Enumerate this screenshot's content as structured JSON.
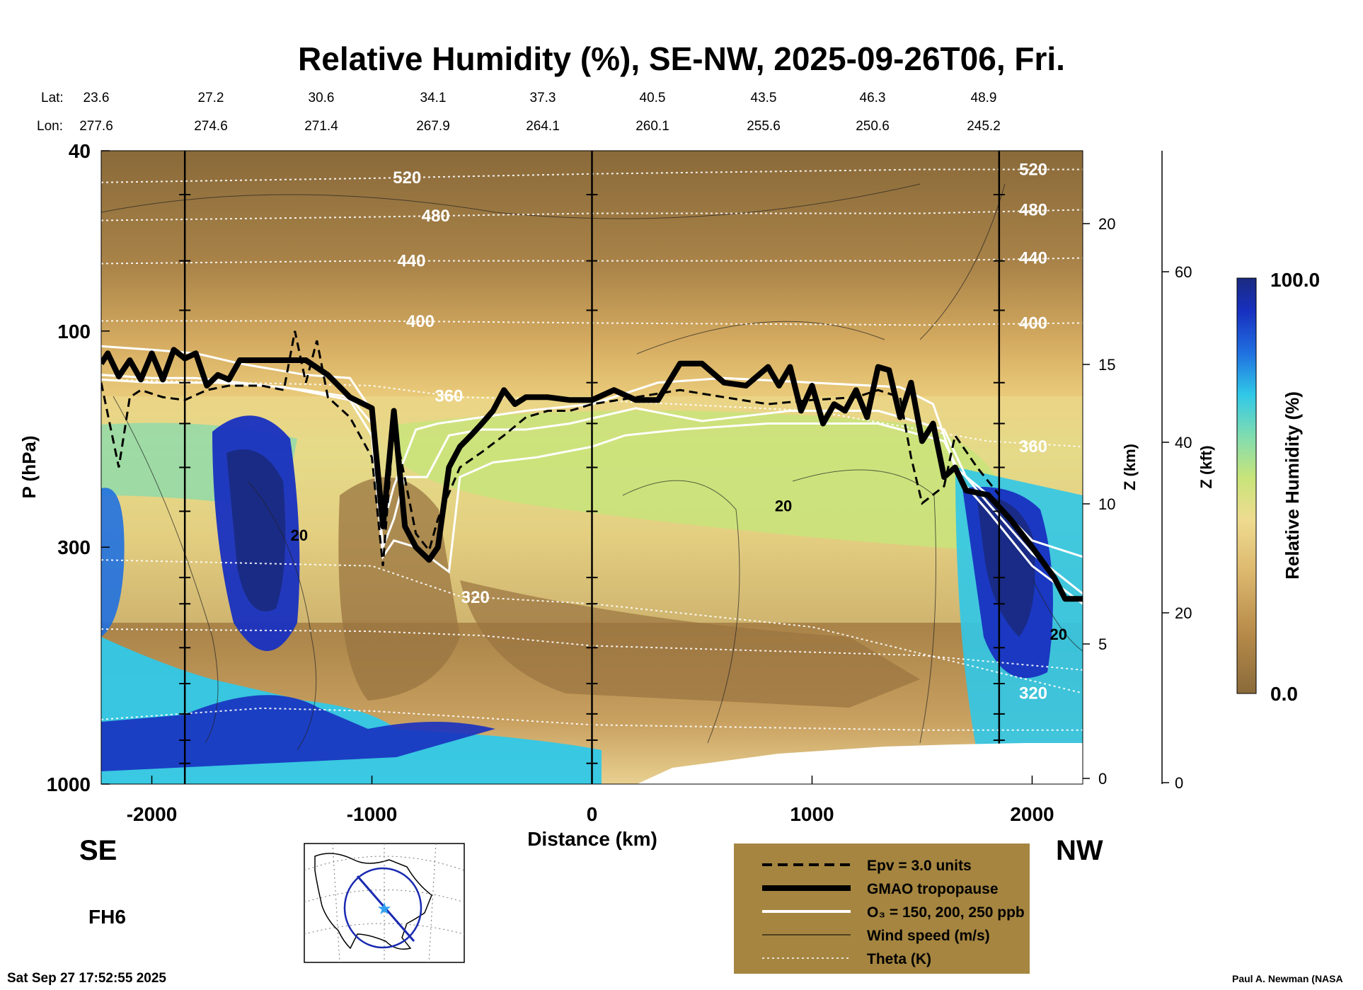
{
  "title": "Relative Humidity (%), SE-NW, 2025-09-26T06, Fri.",
  "lat_label": "Lat:",
  "lon_label": "Lon:",
  "lat_values": [
    "23.6",
    "27.2",
    "30.6",
    "34.1",
    "37.3",
    "40.5",
    "43.5",
    "46.3",
    "48.9"
  ],
  "lon_values": [
    "277.6",
    "274.6",
    "271.4",
    "267.9",
    "264.1",
    "260.1",
    "255.6",
    "250.6",
    "245.2"
  ],
  "left_end": "SE",
  "right_end": "NW",
  "forecast_hour": "FH6",
  "timestamp": "Sat Sep 27 17:52:55 2025",
  "credit": "Paul A. Newman (NASA",
  "legend": {
    "items": [
      {
        "style": "dashed",
        "label": "Epv = 3.0 units"
      },
      {
        "style": "thick",
        "label": "GMAO tropopause"
      },
      {
        "style": "white",
        "label": "O₃ = 150, 200, 250 ppb"
      },
      {
        "style": "thin",
        "label": "Wind speed (m/s)"
      },
      {
        "style": "dotted",
        "label": "Theta (K)"
      }
    ]
  },
  "colors": {
    "dry": "#8a6a3a",
    "mid": "#c8e47a",
    "moist": "#1a2a80",
    "legend_bg": "#a58540"
  },
  "chart_data": {
    "type": "heatmap",
    "xlabel": "Distance (km)",
    "ylabel": "P (hPa)",
    "xlim": [
      -2230,
      2230
    ],
    "ylim": [
      1000,
      40
    ],
    "y_scale": "log",
    "x_ticks": [
      -2000,
      -1000,
      0,
      1000,
      2000
    ],
    "x_tick_labels": [
      "-2000",
      "-1000",
      "0",
      "1000",
      "2000"
    ],
    "y_ticks": [
      40,
      100,
      300,
      1000
    ],
    "y_tick_labels": [
      "40",
      "100",
      "300",
      "1000"
    ],
    "z_km_label": "Z (km)",
    "z_km_ticks": [
      0,
      5,
      10,
      15,
      20
    ],
    "z_kft_label": "Z (kft)",
    "z_kft_ticks": [
      0,
      20,
      40,
      60
    ],
    "colorbar": {
      "label": "Relative Humidity (%)",
      "min": 0.0,
      "max": 100.0,
      "min_label": "0.0",
      "max_label": "100.0"
    },
    "vertical_lines_x": [
      -1850,
      0,
      1850
    ],
    "theta_contours": [
      {
        "level": "520",
        "points": [
          [
            -2230,
            47
          ],
          [
            -1000,
            46
          ],
          [
            0,
            45
          ],
          [
            1500,
            44
          ],
          [
            2230,
            44
          ]
        ],
        "label_x": -840
      },
      {
        "level": "480",
        "points": [
          [
            -2230,
            57
          ],
          [
            -1000,
            56
          ],
          [
            0,
            55
          ],
          [
            1500,
            55
          ],
          [
            2230,
            54
          ]
        ],
        "label_x": -710
      },
      {
        "level": "440",
        "points": [
          [
            -2230,
            71
          ],
          [
            -1000,
            70
          ],
          [
            0,
            70
          ],
          [
            1500,
            70
          ],
          [
            2230,
            69
          ]
        ],
        "label_x": -820
      },
      {
        "level": "400",
        "points": [
          [
            -2230,
            95
          ],
          [
            -1000,
            95
          ],
          [
            0,
            96
          ],
          [
            1500,
            97
          ],
          [
            2230,
            96
          ]
        ],
        "label_x": -780
      },
      {
        "level": "360",
        "points": [
          [
            -2230,
            128
          ],
          [
            -1000,
            132
          ],
          [
            -600,
            140
          ],
          [
            0,
            142
          ],
          [
            1000,
            150
          ],
          [
            1800,
            175
          ],
          [
            2230,
            180
          ]
        ],
        "label_x": -650
      },
      {
        "level": "320",
        "points": [
          [
            -2230,
            320
          ],
          [
            -1000,
            330
          ],
          [
            -600,
            385
          ],
          [
            0,
            400
          ],
          [
            1000,
            450
          ],
          [
            1800,
            560
          ],
          [
            2230,
            630
          ]
        ],
        "label_x": -530
      },
      {
        "level": "",
        "points": [
          [
            -2230,
            455
          ],
          [
            -1000,
            460
          ],
          [
            -500,
            470
          ],
          [
            0,
            495
          ],
          [
            1500,
            520
          ],
          [
            2230,
            560
          ]
        ],
        "label_x": null
      },
      {
        "level": "",
        "points": [
          [
            -2230,
            720
          ],
          [
            -1500,
            680
          ],
          [
            -1000,
            690
          ],
          [
            0,
            740
          ],
          [
            1500,
            760
          ],
          [
            2230,
            760
          ]
        ],
        "label_x": null
      }
    ],
    "tropopause": [
      [
        -2230,
        118
      ],
      [
        -2200,
        112
      ],
      [
        -2150,
        126
      ],
      [
        -2100,
        116
      ],
      [
        -2050,
        128
      ],
      [
        -2000,
        112
      ],
      [
        -1950,
        128
      ],
      [
        -1900,
        110
      ],
      [
        -1850,
        115
      ],
      [
        -1800,
        112
      ],
      [
        -1750,
        132
      ],
      [
        -1700,
        125
      ],
      [
        -1650,
        128
      ],
      [
        -1600,
        116
      ],
      [
        -1500,
        116
      ],
      [
        -1400,
        116
      ],
      [
        -1300,
        116
      ],
      [
        -1200,
        125
      ],
      [
        -1100,
        140
      ],
      [
        -1000,
        148
      ],
      [
        -950,
        270
      ],
      [
        -900,
        150
      ],
      [
        -850,
        270
      ],
      [
        -800,
        300
      ],
      [
        -740,
        320
      ],
      [
        -700,
        300
      ],
      [
        -650,
        200
      ],
      [
        -600,
        180
      ],
      [
        -550,
        170
      ],
      [
        -500,
        160
      ],
      [
        -450,
        150
      ],
      [
        -400,
        135
      ],
      [
        -350,
        145
      ],
      [
        -300,
        140
      ],
      [
        -200,
        140
      ],
      [
        -100,
        142
      ],
      [
        0,
        142
      ],
      [
        100,
        135
      ],
      [
        200,
        142
      ],
      [
        300,
        142
      ],
      [
        400,
        118
      ],
      [
        500,
        118
      ],
      [
        600,
        130
      ],
      [
        700,
        132
      ],
      [
        800,
        120
      ],
      [
        850,
        132
      ],
      [
        900,
        120
      ],
      [
        950,
        150
      ],
      [
        1000,
        132
      ],
      [
        1050,
        160
      ],
      [
        1100,
        145
      ],
      [
        1150,
        150
      ],
      [
        1200,
        135
      ],
      [
        1250,
        155
      ],
      [
        1300,
        120
      ],
      [
        1350,
        122
      ],
      [
        1400,
        155
      ],
      [
        1450,
        130
      ],
      [
        1500,
        175
      ],
      [
        1550,
        160
      ],
      [
        1600,
        210
      ],
      [
        1650,
        200
      ],
      [
        1700,
        225
      ],
      [
        1800,
        230
      ],
      [
        1900,
        260
      ],
      [
        2000,
        300
      ],
      [
        2100,
        350
      ],
      [
        2150,
        390
      ],
      [
        2230,
        390
      ]
    ],
    "epv": [
      [
        -2230,
        130
      ],
      [
        -2150,
        200
      ],
      [
        -2100,
        140
      ],
      [
        -2050,
        135
      ],
      [
        -1950,
        140
      ],
      [
        -1850,
        142
      ],
      [
        -1750,
        135
      ],
      [
        -1650,
        132
      ],
      [
        -1500,
        132
      ],
      [
        -1400,
        135
      ],
      [
        -1350,
        100
      ],
      [
        -1300,
        130
      ],
      [
        -1250,
        105
      ],
      [
        -1200,
        140
      ],
      [
        -1100,
        155
      ],
      [
        -1000,
        190
      ],
      [
        -950,
        330
      ],
      [
        -900,
        160
      ],
      [
        -800,
        280
      ],
      [
        -740,
        305
      ],
      [
        -700,
        260
      ],
      [
        -600,
        200
      ],
      [
        -500,
        185
      ],
      [
        -400,
        170
      ],
      [
        -300,
        155
      ],
      [
        -200,
        150
      ],
      [
        -100,
        150
      ],
      [
        0,
        145
      ],
      [
        200,
        140
      ],
      [
        400,
        135
      ],
      [
        600,
        140
      ],
      [
        800,
        145
      ],
      [
        1000,
        142
      ],
      [
        1200,
        140
      ],
      [
        1300,
        135
      ],
      [
        1400,
        140
      ],
      [
        1450,
        190
      ],
      [
        1500,
        240
      ],
      [
        1600,
        220
      ],
      [
        1650,
        170
      ],
      [
        1750,
        200
      ],
      [
        1850,
        230
      ]
    ],
    "ozone": [
      [
        [
          -2230,
          108
        ],
        [
          -2000,
          110
        ],
        [
          -1800,
          112
        ],
        [
          -1600,
          118
        ],
        [
          -1300,
          125
        ],
        [
          -1100,
          127
        ],
        [
          -1000,
          150
        ],
        [
          -950,
          270
        ],
        [
          -900,
          220
        ],
        [
          -800,
          165
        ],
        [
          -700,
          160
        ],
        [
          -500,
          155
        ],
        [
          -300,
          150
        ],
        [
          0,
          145
        ],
        [
          300,
          130
        ],
        [
          600,
          127
        ],
        [
          1000,
          130
        ],
        [
          1400,
          133
        ],
        [
          1550,
          145
        ],
        [
          1650,
          200
        ],
        [
          1800,
          230
        ],
        [
          2000,
          290
        ],
        [
          2230,
          315
        ]
      ],
      [
        [
          -2230,
          125
        ],
        [
          -2000,
          127
        ],
        [
          -1800,
          127
        ],
        [
          -1600,
          130
        ],
        [
          -1300,
          135
        ],
        [
          -1100,
          140
        ],
        [
          -1000,
          160
        ],
        [
          -950,
          300
        ],
        [
          -900,
          260
        ],
        [
          -850,
          210
        ],
        [
          -750,
          210
        ],
        [
          -650,
          170
        ],
        [
          -500,
          165
        ],
        [
          -300,
          165
        ],
        [
          -100,
          160
        ],
        [
          200,
          148
        ],
        [
          500,
          158
        ],
        [
          900,
          150
        ],
        [
          1300,
          150
        ],
        [
          1600,
          165
        ],
        [
          1700,
          210
        ],
        [
          1800,
          240
        ],
        [
          2000,
          310
        ],
        [
          2230,
          380
        ]
      ],
      [
        [
          -2230,
          128
        ],
        [
          -2000,
          130
        ],
        [
          -1700,
          130
        ],
        [
          -1400,
          133
        ],
        [
          -1100,
          142
        ],
        [
          -1000,
          170
        ],
        [
          -950,
          315
        ],
        [
          -900,
          290
        ],
        [
          -800,
          300
        ],
        [
          -650,
          340
        ],
        [
          -600,
          210
        ],
        [
          -450,
          195
        ],
        [
          -250,
          190
        ],
        [
          0,
          180
        ],
        [
          150,
          170
        ],
        [
          400,
          165
        ],
        [
          800,
          160
        ],
        [
          1300,
          160
        ],
        [
          1600,
          175
        ],
        [
          1700,
          220
        ],
        [
          1800,
          250
        ],
        [
          2000,
          330
        ],
        [
          2230,
          400
        ]
      ]
    ],
    "wind_labels": [
      {
        "text": "20",
        "x": -1330,
        "p": 290
      },
      {
        "text": "20",
        "x": 870,
        "p": 250
      },
      {
        "text": "20",
        "x": 2120,
        "p": 480
      }
    ],
    "map_inset": {
      "left_end": "SE",
      "right_end": "NW"
    }
  }
}
